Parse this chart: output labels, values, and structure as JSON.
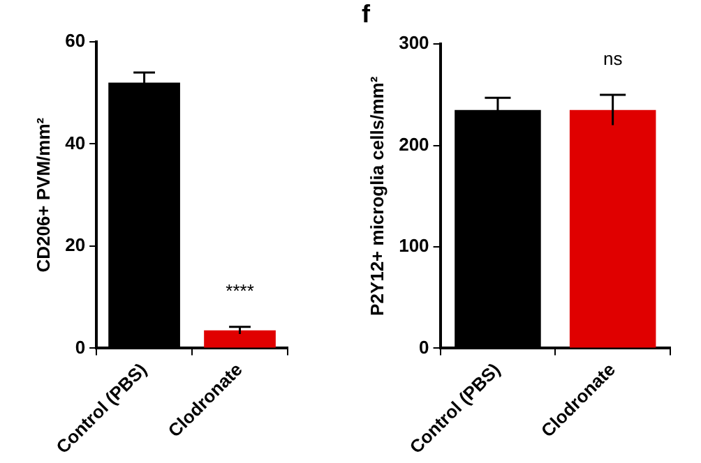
{
  "chart_data": [
    {
      "type": "bar",
      "ylabel": "CD206+ PVM/mm²",
      "categories": [
        "Control (PBS)",
        "Clodronate"
      ],
      "values": [
        52,
        3.5
      ],
      "errors": [
        2,
        0.7
      ],
      "colors": [
        "#000000",
        "#e00000"
      ],
      "ylim": [
        0,
        60
      ],
      "yticks": [
        0,
        20,
        40,
        60
      ],
      "annotations": [
        "****"
      ]
    },
    {
      "type": "bar",
      "title": "f",
      "ylabel": "P2Y12+ microglia cells/mm²",
      "categories": [
        "Control (PBS)",
        "Clodronate"
      ],
      "values": [
        235,
        235
      ],
      "errors": [
        12,
        15
      ],
      "colors": [
        "#000000",
        "#e00000"
      ],
      "ylim": [
        0,
        300
      ],
      "yticks": [
        0,
        100,
        200,
        300
      ],
      "annotations": [
        "ns"
      ]
    }
  ]
}
